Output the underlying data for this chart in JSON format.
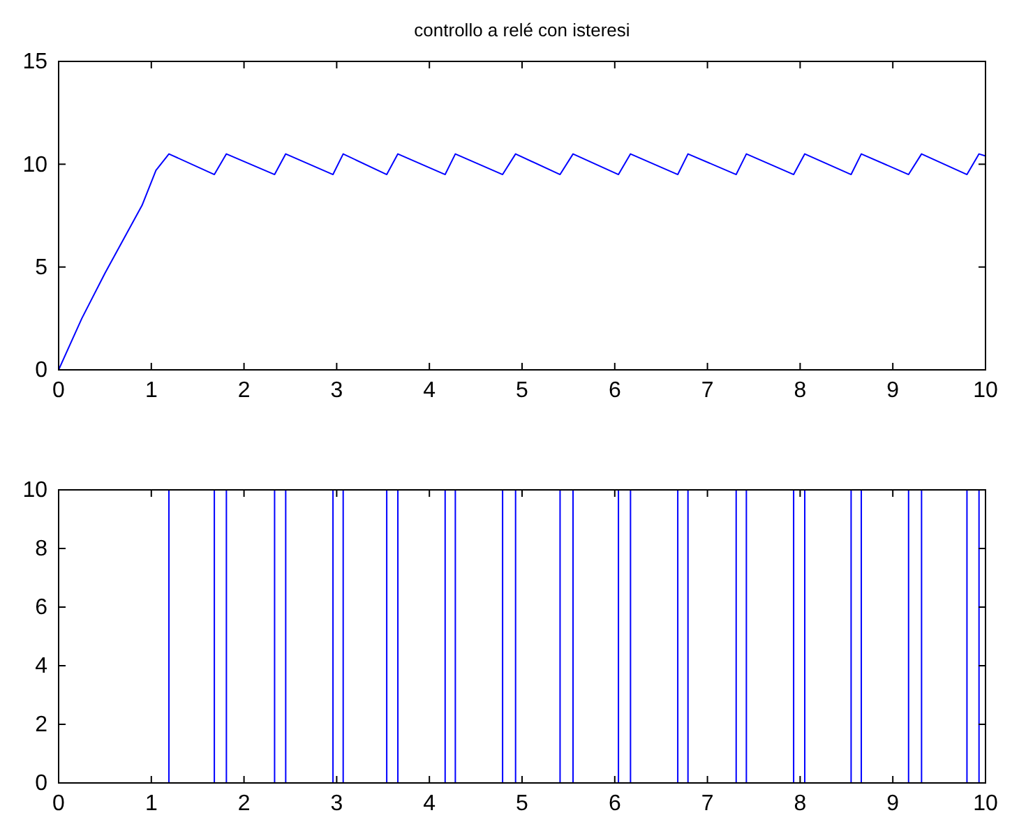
{
  "chart_data": [
    {
      "type": "line",
      "title": "controllo a relé con isteresi",
      "series": [
        {
          "color": "#0000ff",
          "x": [
            0,
            0.25,
            0.5,
            0.9,
            1.05,
            1.19,
            1.68,
            1.81,
            2.33,
            2.45,
            2.96,
            3.07,
            3.54,
            3.66,
            4.17,
            4.28,
            4.79,
            4.93,
            5.41,
            5.55,
            6.04,
            6.17,
            6.68,
            6.79,
            7.31,
            7.42,
            7.93,
            8.05,
            8.55,
            8.66,
            9.17,
            9.31,
            9.8,
            9.93,
            10
          ],
          "values": [
            0,
            2.5,
            4.7,
            8,
            9.7,
            10.5,
            9.5,
            10.5,
            9.5,
            10.5,
            9.5,
            10.5,
            9.5,
            10.5,
            9.5,
            10.5,
            9.5,
            10.5,
            9.5,
            10.5,
            9.5,
            10.5,
            9.5,
            10.5,
            9.5,
            10.5,
            9.5,
            10.5,
            9.5,
            10.5,
            9.5,
            10.5,
            9.5,
            10.5,
            10.4
          ]
        }
      ],
      "xlim": [
        0,
        10
      ],
      "xticks": [
        0,
        1,
        2,
        3,
        4,
        5,
        6,
        7,
        8,
        9,
        10
      ],
      "ylim": [
        0,
        15
      ],
      "yticks": [
        0,
        5,
        10,
        15
      ],
      "grid": false
    },
    {
      "type": "step",
      "series": [
        {
          "color": "#0000ff",
          "x": [
            0,
            1.19,
            1.68,
            1.81,
            2.33,
            2.45,
            2.96,
            3.07,
            3.54,
            3.66,
            4.17,
            4.28,
            4.79,
            4.93,
            5.41,
            5.55,
            6.04,
            6.17,
            6.68,
            6.79,
            7.31,
            7.42,
            7.93,
            8.05,
            8.55,
            8.66,
            9.17,
            9.31,
            9.8,
            9.93,
            10
          ],
          "values": [
            10,
            0,
            10,
            0,
            10,
            0,
            10,
            0,
            10,
            0,
            10,
            0,
            10,
            0,
            10,
            0,
            10,
            0,
            10,
            0,
            10,
            0,
            10,
            0,
            10,
            0,
            10,
            0,
            10,
            0,
            0
          ]
        }
      ],
      "xlim": [
        0,
        10
      ],
      "xticks": [
        0,
        1,
        2,
        3,
        4,
        5,
        6,
        7,
        8,
        9,
        10
      ],
      "ylim": [
        0,
        10
      ],
      "yticks": [
        0,
        2,
        4,
        6,
        8,
        10
      ],
      "grid": false
    }
  ]
}
